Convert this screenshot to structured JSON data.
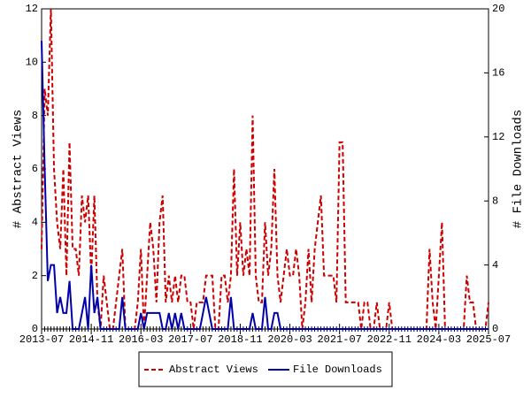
{
  "chart_data": {
    "type": "line",
    "y_label": "# Abstract Views",
    "y2_label": "# File Downloads",
    "categories": [
      "2013-07",
      null,
      null,
      null,
      null,
      null,
      null,
      null,
      null,
      null,
      null,
      null,
      null,
      null,
      null,
      null,
      "2014-11",
      null,
      null,
      null,
      null,
      null,
      null,
      null,
      null,
      null,
      null,
      null,
      null,
      null,
      null,
      null,
      "2016-03",
      null,
      null,
      null,
      null,
      null,
      null,
      null,
      null,
      null,
      null,
      null,
      null,
      null,
      null,
      null,
      "2017-07",
      null,
      null,
      null,
      null,
      null,
      null,
      null,
      null,
      null,
      null,
      null,
      null,
      null,
      null,
      null,
      "2018-11",
      null,
      null,
      null,
      null,
      null,
      null,
      null,
      null,
      null,
      null,
      null,
      null,
      null,
      null,
      null,
      "2020-03",
      null,
      null,
      null,
      null,
      null,
      null,
      null,
      null,
      null,
      null,
      null,
      null,
      null,
      null,
      null,
      "2021-07",
      null,
      null,
      null,
      null,
      null,
      null,
      null,
      null,
      null,
      null,
      null,
      null,
      null,
      null,
      null,
      "2022-11",
      null,
      null,
      null,
      null,
      null,
      null,
      null,
      null,
      null,
      null,
      null,
      null,
      null,
      null,
      null,
      "2024-03",
      null,
      null,
      null,
      null,
      null,
      null,
      null,
      null,
      null,
      null,
      null,
      null,
      null,
      null,
      null,
      "2025-07"
    ],
    "series": [
      {
        "name": "Abstract Views",
        "color": "#cc0000",
        "dash": true,
        "values": [
          3,
          9,
          8,
          12,
          6,
          4,
          3,
          6,
          2,
          7,
          3,
          3,
          2,
          5,
          4,
          5,
          2,
          5,
          1,
          0,
          2,
          1,
          0,
          0,
          1,
          2,
          3,
          0,
          0,
          0,
          0,
          1,
          3,
          0,
          2,
          4,
          3,
          1,
          4,
          5,
          1,
          2,
          1,
          2,
          1,
          2,
          2,
          1,
          1,
          0,
          1,
          1,
          1,
          2,
          2,
          2,
          0,
          0,
          2,
          2,
          1,
          2,
          6,
          2,
          4,
          2,
          3,
          2,
          8,
          2,
          1,
          1,
          4,
          2,
          3,
          6,
          2,
          1,
          2,
          3,
          2,
          2,
          3,
          2,
          0,
          1,
          3,
          1,
          3,
          4,
          5,
          2,
          2,
          2,
          2,
          1,
          7,
          7,
          1,
          1,
          1,
          1,
          1,
          0,
          1,
          1,
          0,
          0,
          1,
          0,
          0,
          0,
          1,
          0,
          0,
          0,
          0,
          0,
          0,
          0,
          0,
          0,
          0,
          0,
          0,
          3,
          1,
          0,
          2,
          4,
          0,
          0,
          0,
          0,
          0,
          0,
          0,
          2,
          1,
          1,
          0,
          0,
          0,
          0,
          1
        ]
      },
      {
        "name": "File Downloads",
        "color": "#0000aa",
        "axis": "y2",
        "values": [
          18,
          10,
          3,
          4,
          4,
          1,
          2,
          1,
          1,
          3,
          0,
          0,
          0,
          1,
          2,
          0,
          4,
          1,
          2,
          0,
          0,
          0,
          0,
          0,
          0,
          0,
          2,
          0,
          0,
          0,
          0,
          0,
          1,
          0,
          1,
          1,
          1,
          1,
          1,
          0,
          0,
          1,
          0,
          1,
          0,
          1,
          0,
          0,
          0,
          0,
          0,
          0,
          1,
          2,
          1,
          0,
          0,
          0,
          0,
          0,
          0,
          2,
          0,
          0,
          0,
          0,
          0,
          0,
          1,
          0,
          0,
          0,
          2,
          0,
          0,
          1,
          1,
          0,
          0,
          0,
          0,
          0,
          0,
          0,
          0,
          0,
          0,
          0,
          0,
          0,
          0,
          0,
          0,
          0,
          0,
          0,
          0,
          0,
          0,
          0,
          0,
          0,
          0,
          0,
          0,
          0,
          0,
          0,
          0,
          0,
          0,
          0,
          0,
          0,
          0,
          0,
          0,
          0,
          0,
          0,
          0,
          0,
          0,
          0,
          0,
          0,
          0,
          0,
          0,
          0,
          0,
          0,
          0,
          0,
          0,
          0,
          0,
          0,
          0,
          0,
          0,
          0,
          0,
          0,
          0
        ]
      }
    ],
    "ylim": [
      0,
      12
    ],
    "yticks": [
      0,
      2,
      4,
      6,
      8,
      10,
      12
    ],
    "y2lim": [
      0,
      20
    ],
    "y2ticks": [
      0,
      4,
      8,
      12,
      16,
      20
    ],
    "legend": "bottom"
  }
}
